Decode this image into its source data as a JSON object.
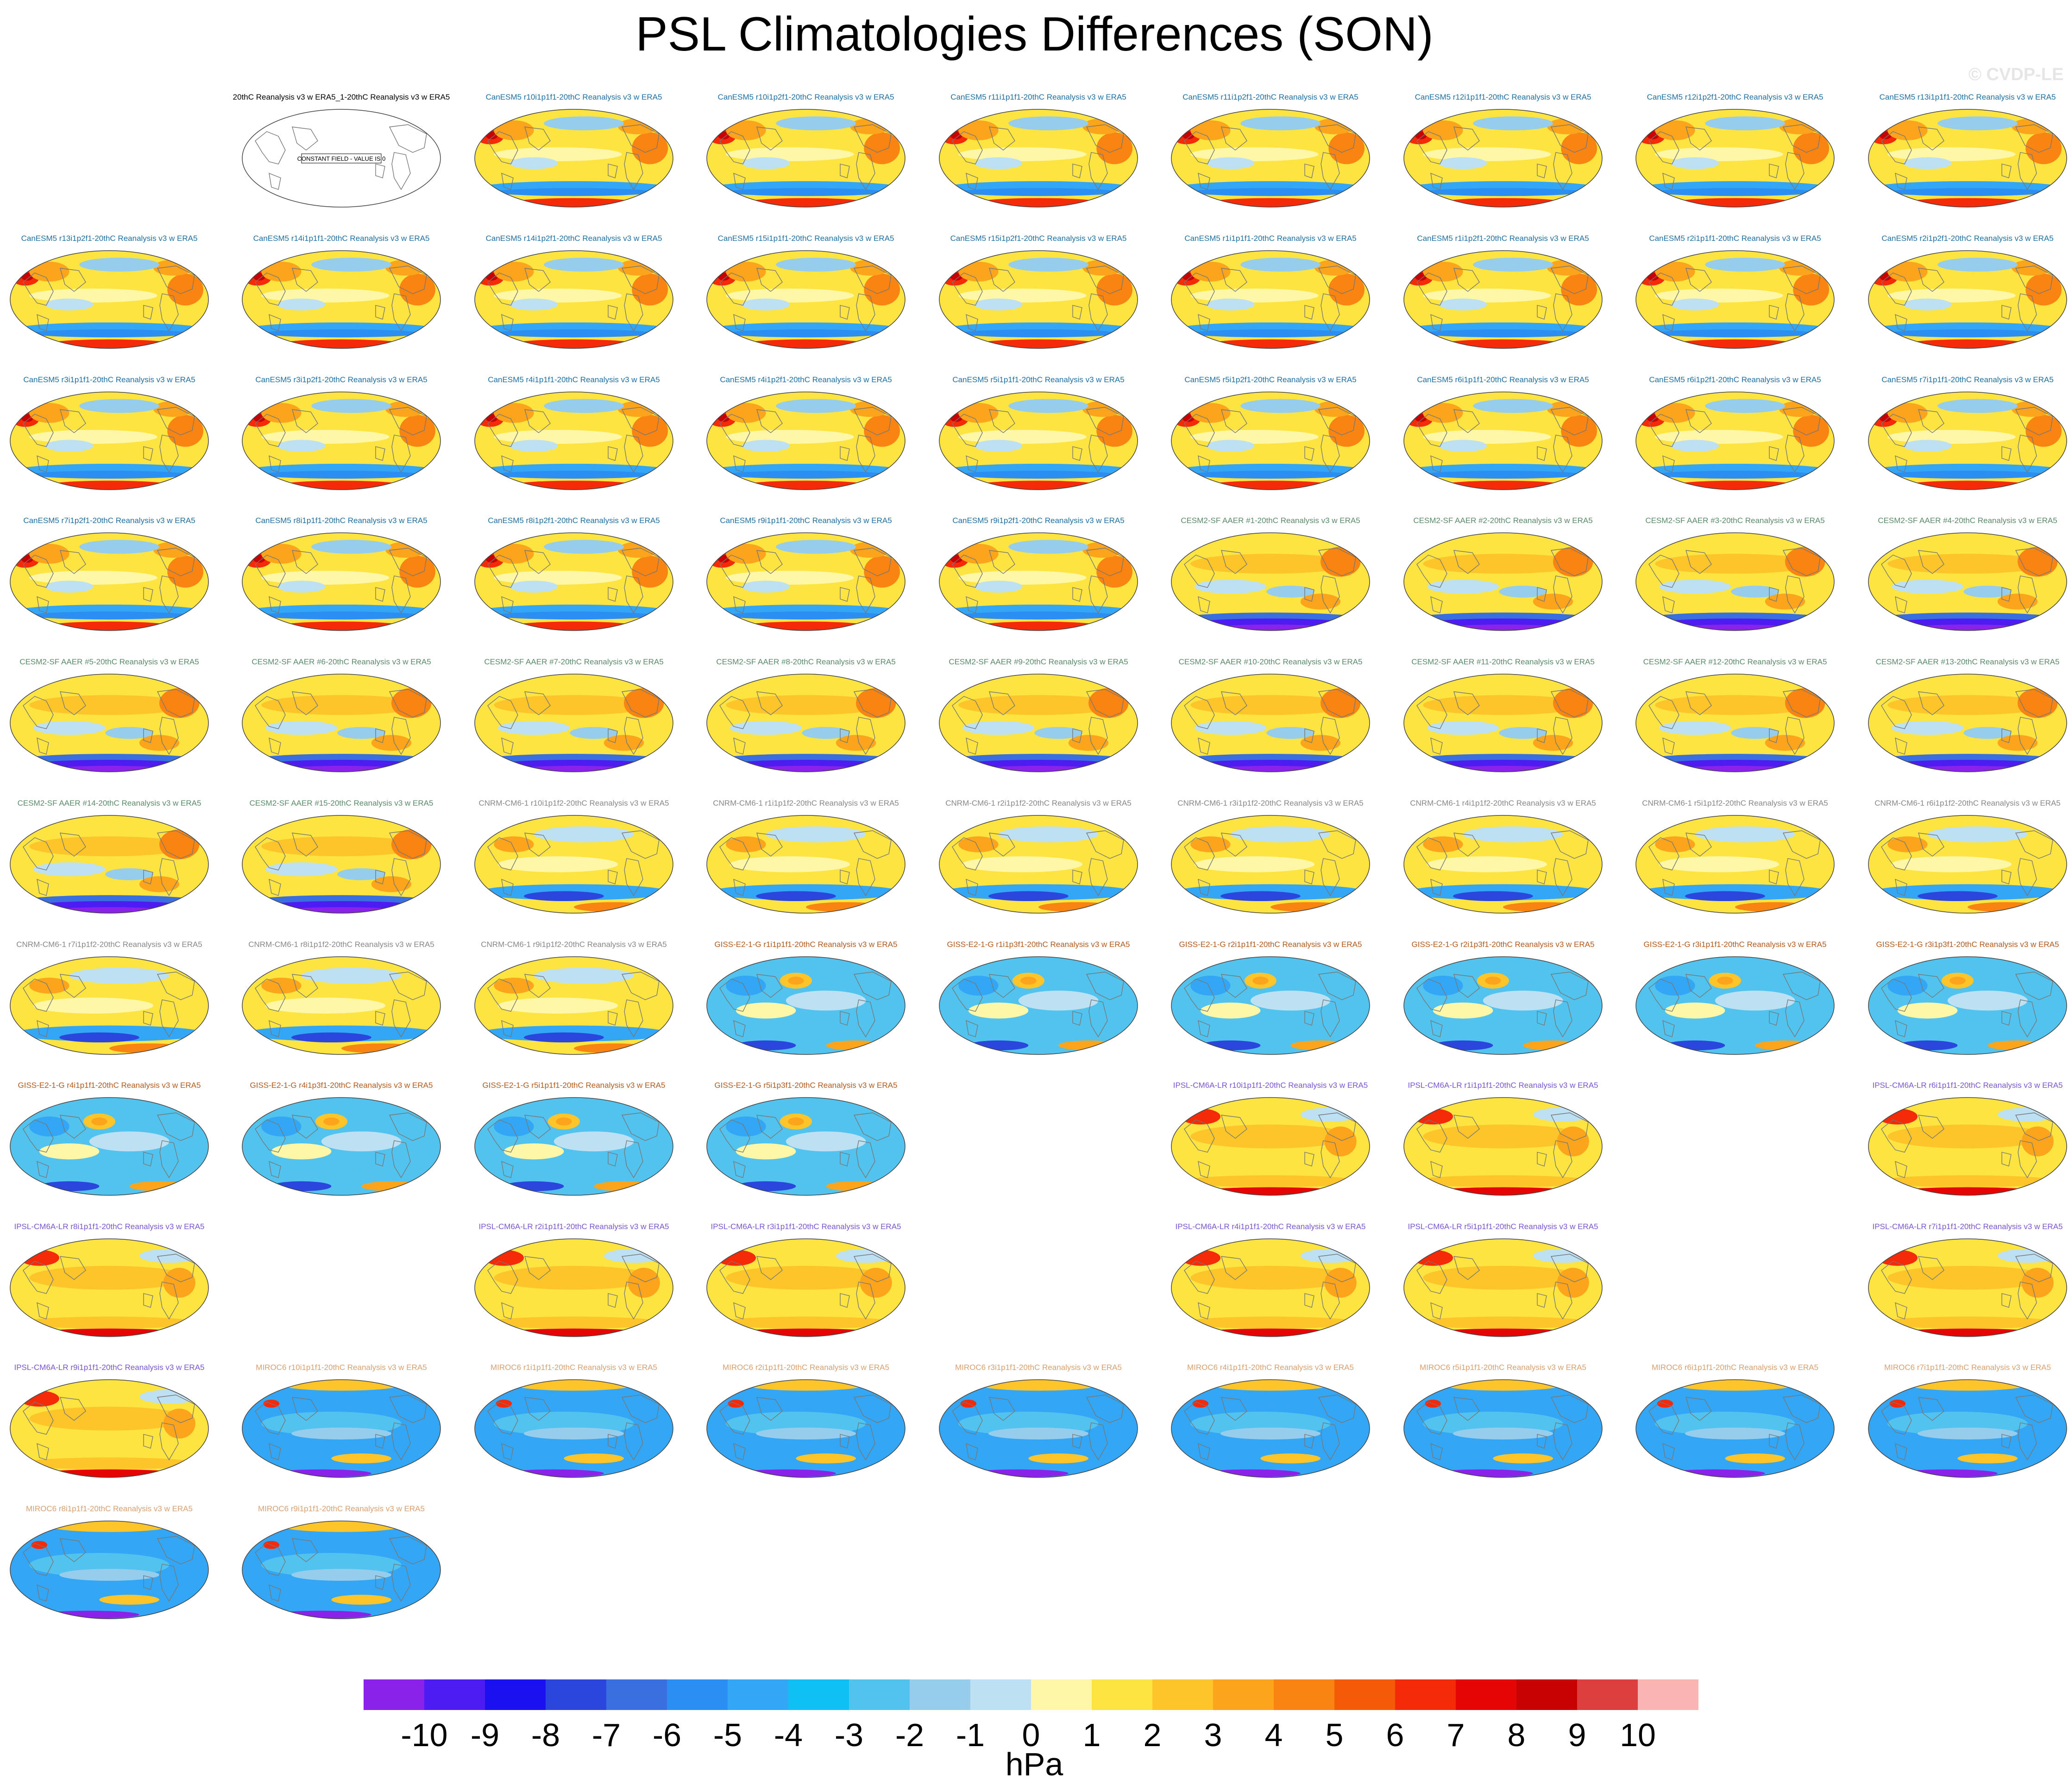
{
  "title": "PSL Climatologies Differences (SON)",
  "watermark": "© CVDP-LE",
  "constant_field_text": "CONSTANT FIELD - VALUE IS 0",
  "model_colors": {
    "Obs": "#000000",
    "CanESM5": "#1f6fa0",
    "CESM2-SF AAER": "#5a8a6a",
    "CNRM-CM6-1": "#888888",
    "GISS-E2-1-G": "#b25a1e",
    "IPSL-CM6A-LR": "#7a55d0",
    "MIROC6": "#d9a070"
  },
  "panels": [
    {
      "label": "20thC Reanalysis v3 w ERA5_1-20thC Reanalysis v3 w ERA5",
      "model": "Obs",
      "style": "blank"
    },
    {
      "label": "CanESM5 r10i1p1f1-20thC Reanalysis v3 w ERA5",
      "model": "CanESM5",
      "style": "warm"
    },
    {
      "label": "CanESM5 r10i1p2f1-20thC Reanalysis v3 w ERA5",
      "model": "CanESM5",
      "style": "warm"
    },
    {
      "label": "CanESM5 r11i1p1f1-20thC Reanalysis v3 w ERA5",
      "model": "CanESM5",
      "style": "warm"
    },
    {
      "label": "CanESM5 r11i1p2f1-20thC Reanalysis v3 w ERA5",
      "model": "CanESM5",
      "style": "warm"
    },
    {
      "label": "CanESM5 r12i1p1f1-20thC Reanalysis v3 w ERA5",
      "model": "CanESM5",
      "style": "warm"
    },
    {
      "label": "CanESM5 r12i1p2f1-20thC Reanalysis v3 w ERA5",
      "model": "CanESM5",
      "style": "warm"
    },
    {
      "label": "CanESM5 r13i1p1f1-20thC Reanalysis v3 w ERA5",
      "model": "CanESM5",
      "style": "warm"
    },
    {
      "label": "CanESM5 r13i1p2f1-20thC Reanalysis v3 w ERA5",
      "model": "CanESM5",
      "style": "warm"
    },
    {
      "label": "CanESM5 r14i1p1f1-20thC Reanalysis v3 w ERA5",
      "model": "CanESM5",
      "style": "warm"
    },
    {
      "label": "CanESM5 r14i1p2f1-20thC Reanalysis v3 w ERA5",
      "model": "CanESM5",
      "style": "warm"
    },
    {
      "label": "CanESM5 r15i1p1f1-20thC Reanalysis v3 w ERA5",
      "model": "CanESM5",
      "style": "warm"
    },
    {
      "label": "CanESM5 r15i1p2f1-20thC Reanalysis v3 w ERA5",
      "model": "CanESM5",
      "style": "warm"
    },
    {
      "label": "CanESM5 r1i1p1f1-20thC Reanalysis v3 w ERA5",
      "model": "CanESM5",
      "style": "warm"
    },
    {
      "label": "CanESM5 r1i1p2f1-20thC Reanalysis v3 w ERA5",
      "model": "CanESM5",
      "style": "warm"
    },
    {
      "label": "CanESM5 r2i1p1f1-20thC Reanalysis v3 w ERA5",
      "model": "CanESM5",
      "style": "warm"
    },
    {
      "label": "CanESM5 r2i1p2f1-20thC Reanalysis v3 w ERA5",
      "model": "CanESM5",
      "style": "warm"
    },
    {
      "label": "CanESM5 r3i1p1f1-20thC Reanalysis v3 w ERA5",
      "model": "CanESM5",
      "style": "warm"
    },
    {
      "label": "CanESM5 r3i1p2f1-20thC Reanalysis v3 w ERA5",
      "model": "CanESM5",
      "style": "warm"
    },
    {
      "label": "CanESM5 r4i1p1f1-20thC Reanalysis v3 w ERA5",
      "model": "CanESM5",
      "style": "warm"
    },
    {
      "label": "CanESM5 r4i1p2f1-20thC Reanalysis v3 w ERA5",
      "model": "CanESM5",
      "style": "warm"
    },
    {
      "label": "CanESM5 r5i1p1f1-20thC Reanalysis v3 w ERA5",
      "model": "CanESM5",
      "style": "warm"
    },
    {
      "label": "CanESM5 r5i1p2f1-20thC Reanalysis v3 w ERA5",
      "model": "CanESM5",
      "style": "warm"
    },
    {
      "label": "CanESM5 r6i1p1f1-20thC Reanalysis v3 w ERA5",
      "model": "CanESM5",
      "style": "warm"
    },
    {
      "label": "CanESM5 r6i1p2f1-20thC Reanalysis v3 w ERA5",
      "model": "CanESM5",
      "style": "warm"
    },
    {
      "label": "CanESM5 r7i1p1f1-20thC Reanalysis v3 w ERA5",
      "model": "CanESM5",
      "style": "warm"
    },
    {
      "label": "CanESM5 r7i1p2f1-20thC Reanalysis v3 w ERA5",
      "model": "CanESM5",
      "style": "warm"
    },
    {
      "label": "CanESM5 r8i1p1f1-20thC Reanalysis v3 w ERA5",
      "model": "CanESM5",
      "style": "warm"
    },
    {
      "label": "CanESM5 r8i1p2f1-20thC Reanalysis v3 w ERA5",
      "model": "CanESM5",
      "style": "warm"
    },
    {
      "label": "CanESM5 r9i1p1f1-20thC Reanalysis v3 w ERA5",
      "model": "CanESM5",
      "style": "warm"
    },
    {
      "label": "CanESM5 r9i1p2f1-20thC Reanalysis v3 w ERA5",
      "model": "CanESM5",
      "style": "warm"
    },
    {
      "label": "CESM2-SF AAER #1-20thC Reanalysis v3 w ERA5",
      "model": "CESM2-SF AAER",
      "style": "cesm"
    },
    {
      "label": "CESM2-SF AAER #2-20thC Reanalysis v3 w ERA5",
      "model": "CESM2-SF AAER",
      "style": "cesm"
    },
    {
      "label": "CESM2-SF AAER #3-20thC Reanalysis v3 w ERA5",
      "model": "CESM2-SF AAER",
      "style": "cesm"
    },
    {
      "label": "CESM2-SF AAER #4-20thC Reanalysis v3 w ERA5",
      "model": "CESM2-SF AAER",
      "style": "cesm"
    },
    {
      "label": "CESM2-SF AAER #5-20thC Reanalysis v3 w ERA5",
      "model": "CESM2-SF AAER",
      "style": "cesm"
    },
    {
      "label": "CESM2-SF AAER #6-20thC Reanalysis v3 w ERA5",
      "model": "CESM2-SF AAER",
      "style": "cesm"
    },
    {
      "label": "CESM2-SF AAER #7-20thC Reanalysis v3 w ERA5",
      "model": "CESM2-SF AAER",
      "style": "cesm"
    },
    {
      "label": "CESM2-SF AAER #8-20thC Reanalysis v3 w ERA5",
      "model": "CESM2-SF AAER",
      "style": "cesm"
    },
    {
      "label": "CESM2-SF AAER #9-20thC Reanalysis v3 w ERA5",
      "model": "CESM2-SF AAER",
      "style": "cesm"
    },
    {
      "label": "CESM2-SF AAER #10-20thC Reanalysis v3 w ERA5",
      "model": "CESM2-SF AAER",
      "style": "cesm"
    },
    {
      "label": "CESM2-SF AAER #11-20thC Reanalysis v3 w ERA5",
      "model": "CESM2-SF AAER",
      "style": "cesm"
    },
    {
      "label": "CESM2-SF AAER #12-20thC Reanalysis v3 w ERA5",
      "model": "CESM2-SF AAER",
      "style": "cesm"
    },
    {
      "label": "CESM2-SF AAER #13-20thC Reanalysis v3 w ERA5",
      "model": "CESM2-SF AAER",
      "style": "cesm"
    },
    {
      "label": "CESM2-SF AAER #14-20thC Reanalysis v3 w ERA5",
      "model": "CESM2-SF AAER",
      "style": "cesm"
    },
    {
      "label": "CESM2-SF AAER #15-20thC Reanalysis v3 w ERA5",
      "model": "CESM2-SF AAER",
      "style": "cesm"
    },
    {
      "label": "CNRM-CM6-1 r10i1p1f2-20thC Reanalysis v3 w ERA5",
      "model": "CNRM-CM6-1",
      "style": "cnrm"
    },
    {
      "label": "CNRM-CM6-1 r1i1p1f2-20thC Reanalysis v3 w ERA5",
      "model": "CNRM-CM6-1",
      "style": "cnrm"
    },
    {
      "label": "CNRM-CM6-1 r2i1p1f2-20thC Reanalysis v3 w ERA5",
      "model": "CNRM-CM6-1",
      "style": "cnrm"
    },
    {
      "label": "CNRM-CM6-1 r3i1p1f2-20thC Reanalysis v3 w ERA5",
      "model": "CNRM-CM6-1",
      "style": "cnrm"
    },
    {
      "label": "CNRM-CM6-1 r4i1p1f2-20thC Reanalysis v3 w ERA5",
      "model": "CNRM-CM6-1",
      "style": "cnrm"
    },
    {
      "label": "CNRM-CM6-1 r5i1p1f2-20thC Reanalysis v3 w ERA5",
      "model": "CNRM-CM6-1",
      "style": "cnrm"
    },
    {
      "label": "CNRM-CM6-1 r6i1p1f2-20thC Reanalysis v3 w ERA5",
      "model": "CNRM-CM6-1",
      "style": "cnrm"
    },
    {
      "label": "CNRM-CM6-1 r7i1p1f2-20thC Reanalysis v3 w ERA5",
      "model": "CNRM-CM6-1",
      "style": "cnrm"
    },
    {
      "label": "CNRM-CM6-1 r8i1p1f2-20thC Reanalysis v3 w ERA5",
      "model": "CNRM-CM6-1",
      "style": "cnrm"
    },
    {
      "label": "CNRM-CM6-1 r9i1p1f2-20thC Reanalysis v3 w ERA5",
      "model": "CNRM-CM6-1",
      "style": "cnrm"
    },
    {
      "label": "GISS-E2-1-G r1i1p1f1-20thC Reanalysis v3 w ERA5",
      "model": "GISS-E2-1-G",
      "style": "cool"
    },
    {
      "label": "GISS-E2-1-G r1i1p3f1-20thC Reanalysis v3 w ERA5",
      "model": "GISS-E2-1-G",
      "style": "cool"
    },
    {
      "label": "GISS-E2-1-G r2i1p1f1-20thC Reanalysis v3 w ERA5",
      "model": "GISS-E2-1-G",
      "style": "cool"
    },
    {
      "label": "GISS-E2-1-G r2i1p3f1-20thC Reanalysis v3 w ERA5",
      "model": "GISS-E2-1-G",
      "style": "cool"
    },
    {
      "label": "GISS-E2-1-G r3i1p1f1-20thC Reanalysis v3 w ERA5",
      "model": "GISS-E2-1-G",
      "style": "cool"
    },
    {
      "label": "GISS-E2-1-G r3i1p3f1-20thC Reanalysis v3 w ERA5",
      "model": "GISS-E2-1-G",
      "style": "cool"
    },
    {
      "label": "GISS-E2-1-G r4i1p1f1-20thC Reanalysis v3 w ERA5",
      "model": "GISS-E2-1-G",
      "style": "cool"
    },
    {
      "label": "GISS-E2-1-G r4i1p3f1-20thC Reanalysis v3 w ERA5",
      "model": "GISS-E2-1-G",
      "style": "cool"
    },
    {
      "label": "GISS-E2-1-G r5i1p1f1-20thC Reanalysis v3 w ERA5",
      "model": "GISS-E2-1-G",
      "style": "cool"
    },
    {
      "label": "GISS-E2-1-G r5i1p3f1-20thC Reanalysis v3 w ERA5",
      "model": "GISS-E2-1-G",
      "style": "cool"
    },
    {
      "label": "IPSL-CM6A-LR r10i1p1f1-20thC Reanalysis v3 w ERA5",
      "model": "IPSL-CM6A-LR",
      "style": "ipsl"
    },
    {
      "label": "IPSL-CM6A-LR r1i1p1f1-20thC Reanalysis v3 w ERA5",
      "model": "IPSL-CM6A-LR",
      "style": "ipsl"
    },
    {
      "label": "IPSL-CM6A-LR r2i1p1f1-20thC Reanalysis v3 w ERA5",
      "model": "IPSL-CM6A-LR",
      "style": "ipsl"
    },
    {
      "label": "IPSL-CM6A-LR r3i1p1f1-20thC Reanalysis v3 w ERA5",
      "model": "IPSL-CM6A-LR",
      "style": "ipsl"
    },
    {
      "label": "IPSL-CM6A-LR r4i1p1f1-20thC Reanalysis v3 w ERA5",
      "model": "IPSL-CM6A-LR",
      "style": "ipsl"
    },
    {
      "label": "IPSL-CM6A-LR r5i1p1f1-20thC Reanalysis v3 w ERA5",
      "model": "IPSL-CM6A-LR",
      "style": "ipsl"
    },
    {
      "label": "IPSL-CM6A-LR r6i1p1f1-20thC Reanalysis v3 w ERA5",
      "model": "IPSL-CM6A-LR",
      "style": "ipsl"
    },
    {
      "label": "IPSL-CM6A-LR r7i1p1f1-20thC Reanalysis v3 w ERA5",
      "model": "IPSL-CM6A-LR",
      "style": "ipsl"
    },
    {
      "label": "IPSL-CM6A-LR r8i1p1f1-20thC Reanalysis v3 w ERA5",
      "model": "IPSL-CM6A-LR",
      "style": "ipsl"
    },
    {
      "label": "IPSL-CM6A-LR r9i1p1f1-20thC Reanalysis v3 w ERA5",
      "model": "IPSL-CM6A-LR",
      "style": "ipsl"
    },
    {
      "label": "MIROC6 r10i1p1f1-20thC Reanalysis v3 w ERA5",
      "model": "MIROC6",
      "style": "miroc"
    },
    {
      "label": "MIROC6 r1i1p1f1-20thC Reanalysis v3 w ERA5",
      "model": "MIROC6",
      "style": "miroc"
    },
    {
      "label": "MIROC6 r2i1p1f1-20thC Reanalysis v3 w ERA5",
      "model": "MIROC6",
      "style": "miroc"
    },
    {
      "label": "MIROC6 r3i1p1f1-20thC Reanalysis v3 w ERA5",
      "model": "MIROC6",
      "style": "miroc"
    },
    {
      "label": "MIROC6 r4i1p1f1-20thC Reanalysis v3 w ERA5",
      "model": "MIROC6",
      "style": "miroc"
    },
    {
      "label": "MIROC6 r5i1p1f1-20thC Reanalysis v3 w ERA5",
      "model": "MIROC6",
      "style": "miroc"
    },
    {
      "label": "MIROC6 r6i1p1f1-20thC Reanalysis v3 w ERA5",
      "model": "MIROC6",
      "style": "miroc"
    },
    {
      "label": "MIROC6 r7i1p1f1-20thC Reanalysis v3 w ERA5",
      "model": "MIROC6",
      "style": "miroc"
    },
    {
      "label": "MIROC6 r8i1p1f1-20thC Reanalysis v3 w ERA5",
      "model": "MIROC6",
      "style": "miroc"
    },
    {
      "label": "MIROC6 r9i1p1f1-20thC Reanalysis v3 w ERA5",
      "model": "MIROC6",
      "style": "miroc"
    }
  ],
  "colorbar": {
    "units": "hPa",
    "labels": [
      "-10",
      "-9",
      "-8",
      "-7",
      "-6",
      "-5",
      "-4",
      "-3",
      "-2",
      "-1",
      "0",
      "1",
      "2",
      "3",
      "4",
      "5",
      "6",
      "7",
      "8",
      "9",
      "10"
    ],
    "colors": [
      "#8b22ea",
      "#4c1cf2",
      "#1a10f0",
      "#2b46dc",
      "#3a6fdf",
      "#2b8ef3",
      "#33a6f5",
      "#0ec0f4",
      "#52c3ef",
      "#96ccec",
      "#bde0f3",
      "#fff7a8",
      "#fde440",
      "#fdc52a",
      "#fca51c",
      "#f98412",
      "#f45a08",
      "#f42a08",
      "#e60505",
      "#c80202",
      "#dd3f3f",
      "#fbb4b4"
    ]
  }
}
